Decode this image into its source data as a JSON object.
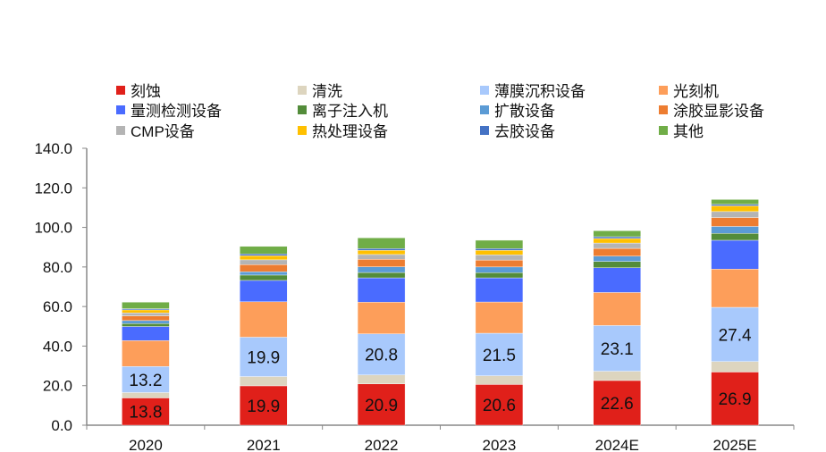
{
  "chart_data": {
    "type": "bar",
    "stacked": true,
    "title": "",
    "xlabel": "",
    "ylabel": "",
    "ylim": [
      0,
      140
    ],
    "yticks": [
      "0.0",
      "20.0",
      "40.0",
      "60.0",
      "80.0",
      "100.0",
      "120.0",
      "140.0"
    ],
    "categories": [
      "2020",
      "2021",
      "2022",
      "2023",
      "2024E",
      "2025E"
    ],
    "legend_position": "top",
    "series": [
      {
        "name": "刻蚀",
        "color": "#e0201a",
        "values": [
          13.8,
          19.9,
          20.9,
          20.6,
          22.6,
          26.9
        ],
        "labeled": true
      },
      {
        "name": "清洗",
        "color": "#ddd5bf",
        "values": [
          2.7,
          4.7,
          4.5,
          4.4,
          4.7,
          5.3
        ]
      },
      {
        "name": "薄膜沉积设备",
        "color": "#a8c9fc",
        "values": [
          13.2,
          19.9,
          20.8,
          21.5,
          23.1,
          27.4
        ],
        "labeled": true
      },
      {
        "name": "光刻机",
        "color": "#fd9e5a",
        "values": [
          13.1,
          17.9,
          16.0,
          15.8,
          16.7,
          19.3
        ]
      },
      {
        "name": "量测检测设备",
        "color": "#4a6bff",
        "values": [
          7.1,
          10.8,
          12.3,
          12.2,
          12.5,
          14.6
        ]
      },
      {
        "name": "离子注入机",
        "color": "#538c3a",
        "values": [
          1.5,
          2.7,
          2.7,
          2.6,
          3.2,
          3.5
        ]
      },
      {
        "name": "扩散设备",
        "color": "#5b9bd5",
        "values": [
          1.5,
          1.7,
          2.9,
          2.9,
          2.7,
          3.5
        ]
      },
      {
        "name": "涂胶显影设备",
        "color": "#ed7d31",
        "values": [
          2.4,
          3.6,
          3.8,
          3.5,
          3.9,
          4.5
        ]
      },
      {
        "name": "CMP设备",
        "color": "#b4b4b4",
        "values": [
          1.5,
          2.4,
          2.4,
          2.6,
          2.7,
          3.0
        ]
      },
      {
        "name": "热处理设备",
        "color": "#ffc000",
        "values": [
          1.5,
          2.1,
          2.1,
          2.3,
          2.3,
          2.9
        ]
      },
      {
        "name": "去胶设备",
        "color": "#4472c4",
        "values": [
          0.6,
          0.9,
          0.9,
          0.9,
          0.9,
          0.8
        ]
      },
      {
        "name": "其他",
        "color": "#70ad47",
        "values": [
          3.3,
          3.8,
          5.4,
          4.2,
          3.0,
          2.4
        ]
      }
    ]
  }
}
